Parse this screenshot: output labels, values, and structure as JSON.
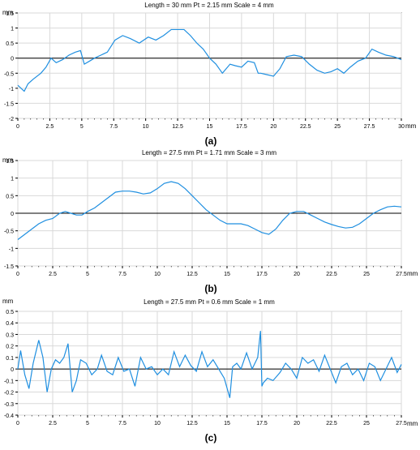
{
  "chart_data": [
    {
      "type": "line",
      "title": "Length = 30 mm  Pt = 2.15 mm  Scale = 4 mm",
      "yunit": "mm",
      "xunit": "mm",
      "caption": "(a)",
      "xlim": [
        0,
        30
      ],
      "ylim": [
        -2.0,
        1.5
      ],
      "xticks": [
        0,
        2.5,
        5,
        7.5,
        10,
        12.5,
        15,
        17.5,
        20,
        22.5,
        25,
        27.5,
        30
      ],
      "xtick_labels": [
        "0",
        "2.5",
        "5",
        "7.5",
        "10",
        "12.5",
        "15",
        "17.5",
        "20",
        "22.5",
        "25",
        "27.5",
        "30"
      ],
      "yticks": [
        1.5,
        1,
        0.5,
        0,
        -0.5,
        -1,
        -1.5,
        -2
      ],
      "ytick_labels": [
        "1.5",
        "1",
        "0.5",
        "0",
        "-0.5",
        "-1",
        "-1.5",
        "-2"
      ],
      "grid": true,
      "zero_line": true,
      "line_color": "#1f8fe0",
      "x": [
        0,
        0.5,
        0.8,
        1.2,
        1.8,
        2.2,
        2.6,
        3.0,
        3.5,
        4.0,
        4.5,
        4.9,
        5.2,
        5.6,
        6.0,
        6.5,
        7.0,
        7.6,
        8.2,
        8.8,
        9.5,
        10.2,
        10.8,
        11.4,
        12.0,
        12.5,
        13.0,
        13.5,
        14.0,
        14.5,
        15.0,
        15.5,
        16.0,
        16.6,
        17.0,
        17.5,
        18.0,
        18.5,
        18.8,
        19.0,
        19.5,
        20.0,
        20.5,
        21.0,
        21.6,
        22.2,
        22.8,
        23.4,
        24.0,
        24.5,
        25.0,
        25.5,
        26.0,
        26.6,
        27.2,
        27.7,
        28.2,
        28.8,
        29.4,
        30.0
      ],
      "y": [
        -0.9,
        -1.1,
        -0.85,
        -0.7,
        -0.5,
        -0.3,
        0.0,
        -0.15,
        -0.05,
        0.1,
        0.2,
        0.25,
        -0.2,
        -0.1,
        0.0,
        0.1,
        0.2,
        0.6,
        0.75,
        0.65,
        0.5,
        0.7,
        0.6,
        0.75,
        0.95,
        0.95,
        0.95,
        0.75,
        0.5,
        0.3,
        0.0,
        -0.2,
        -0.5,
        -0.2,
        -0.25,
        -0.3,
        -0.1,
        -0.15,
        -0.5,
        -0.5,
        -0.55,
        -0.6,
        -0.35,
        0.05,
        0.1,
        0.05,
        -0.2,
        -0.4,
        -0.5,
        -0.45,
        -0.35,
        -0.5,
        -0.3,
        -0.1,
        0.0,
        0.3,
        0.2,
        0.1,
        0.05,
        -0.05
      ]
    },
    {
      "type": "line",
      "title": "Length = 27.5 mm  Pt = 1.71 mm  Scale = 3 mm",
      "yunit": "mm",
      "xunit": "mm",
      "caption": "(b)",
      "xlim": [
        0,
        27.5
      ],
      "ylim": [
        -1.5,
        1.5
      ],
      "xticks": [
        0,
        2.5,
        5,
        7.5,
        10,
        12.5,
        15,
        17.5,
        20,
        22.5,
        25,
        27.5
      ],
      "xtick_labels": [
        "0",
        "2.5",
        "5",
        "7.5",
        "10",
        "12.5",
        "15",
        "17.5",
        "20",
        "22.5",
        "25",
        "27.5"
      ],
      "yticks": [
        1.5,
        1,
        0.5,
        0,
        -0.5,
        -1,
        -1.5
      ],
      "ytick_labels": [
        "1.5",
        "1",
        "0.5",
        "0",
        "-0.5",
        "-1",
        "-1.5"
      ],
      "grid": true,
      "zero_line": true,
      "line_color": "#1f8fe0",
      "x": [
        0,
        0.5,
        1.0,
        1.5,
        2.0,
        2.5,
        3.0,
        3.4,
        3.8,
        4.2,
        4.6,
        5.0,
        5.5,
        6.0,
        6.5,
        7.0,
        7.5,
        8.0,
        8.5,
        9.0,
        9.5,
        10.0,
        10.5,
        11.0,
        11.5,
        12.0,
        12.5,
        13.0,
        13.5,
        14.0,
        14.5,
        15.0,
        15.5,
        16.0,
        16.5,
        17.0,
        17.5,
        18.0,
        18.5,
        19.0,
        19.5,
        20.0,
        20.5,
        21.0,
        21.5,
        22.0,
        22.5,
        23.0,
        23.5,
        24.0,
        24.5,
        25.0,
        25.5,
        26.0,
        26.5,
        27.0,
        27.5
      ],
      "y": [
        -0.75,
        -0.6,
        -0.45,
        -0.3,
        -0.2,
        -0.15,
        0.0,
        0.05,
        0.0,
        -0.05,
        -0.05,
        0.05,
        0.15,
        0.3,
        0.45,
        0.6,
        0.63,
        0.63,
        0.6,
        0.55,
        0.58,
        0.7,
        0.85,
        0.9,
        0.85,
        0.7,
        0.5,
        0.3,
        0.1,
        -0.05,
        -0.2,
        -0.3,
        -0.3,
        -0.3,
        -0.35,
        -0.45,
        -0.55,
        -0.6,
        -0.45,
        -0.2,
        0.0,
        0.05,
        0.05,
        -0.05,
        -0.15,
        -0.25,
        -0.32,
        -0.38,
        -0.42,
        -0.4,
        -0.3,
        -0.15,
        0.0,
        0.1,
        0.18,
        0.2,
        0.18
      ]
    },
    {
      "type": "line",
      "title": "Length = 27.5 mm  Pt = 0.6 mm  Scale = 1 mm",
      "yunit": "mm",
      "xunit": "mm",
      "caption": "(c)",
      "xlim": [
        0,
        27.5
      ],
      "ylim": [
        -0.4,
        0.5
      ],
      "xticks": [
        0,
        2.5,
        5,
        7.5,
        10,
        12.5,
        15,
        17.5,
        20,
        22.5,
        25,
        27.5
      ],
      "xtick_labels": [
        "0",
        "2.5",
        "5",
        "7.5",
        "10",
        "12.5",
        "15",
        "17.5",
        "20",
        "22.5",
        "25",
        "27.5"
      ],
      "yticks": [
        0.5,
        0.4,
        0.3,
        0.2,
        0.1,
        0,
        -0.1,
        -0.2,
        -0.3,
        -0.4
      ],
      "ytick_labels": [
        "0.5",
        "0.4",
        "0.3",
        "0.2",
        "0.1",
        "0",
        "-0.1",
        "-0.2",
        "-0.3",
        "-0.4"
      ],
      "grid": true,
      "zero_line": true,
      "line_color": "#1f8fe0",
      "x": [
        0,
        0.2,
        0.5,
        0.8,
        1.1,
        1.5,
        1.8,
        2.1,
        2.4,
        2.7,
        3.0,
        3.3,
        3.6,
        3.9,
        4.2,
        4.5,
        4.9,
        5.3,
        5.7,
        6.0,
        6.4,
        6.8,
        7.2,
        7.6,
        8.0,
        8.4,
        8.8,
        9.2,
        9.6,
        10.0,
        10.4,
        10.8,
        11.2,
        11.6,
        12.0,
        12.4,
        12.8,
        13.2,
        13.6,
        14.0,
        14.4,
        14.8,
        15.2,
        15.4,
        15.7,
        16.0,
        16.4,
        16.8,
        17.2,
        17.4,
        17.5,
        17.6,
        17.9,
        18.3,
        18.8,
        19.2,
        19.6,
        20.0,
        20.4,
        20.8,
        21.2,
        21.6,
        22.0,
        22.4,
        22.8,
        23.2,
        23.6,
        24.0,
        24.4,
        24.8,
        25.2,
        25.6,
        26.0,
        26.4,
        26.8,
        27.2,
        27.5
      ],
      "y": [
        0.0,
        0.16,
        -0.05,
        -0.17,
        0.05,
        0.25,
        0.1,
        -0.2,
        0.0,
        0.08,
        0.05,
        0.1,
        0.22,
        -0.2,
        -0.1,
        0.08,
        0.05,
        -0.05,
        0.0,
        0.12,
        -0.02,
        -0.05,
        0.1,
        -0.02,
        0.0,
        -0.15,
        0.1,
        0.0,
        0.02,
        -0.05,
        0.0,
        -0.05,
        0.15,
        0.02,
        0.12,
        0.03,
        -0.02,
        0.15,
        0.02,
        0.08,
        0.0,
        -0.08,
        -0.25,
        0.02,
        0.05,
        0.0,
        0.14,
        0.0,
        0.1,
        0.33,
        -0.15,
        -0.12,
        -0.08,
        -0.1,
        -0.03,
        0.05,
        0.0,
        -0.08,
        0.1,
        0.05,
        0.08,
        -0.02,
        0.12,
        0.0,
        -0.12,
        0.02,
        0.05,
        -0.05,
        0.0,
        -0.1,
        0.05,
        0.02,
        -0.1,
        0.0,
        0.1,
        -0.03,
        0.04
      ]
    }
  ]
}
